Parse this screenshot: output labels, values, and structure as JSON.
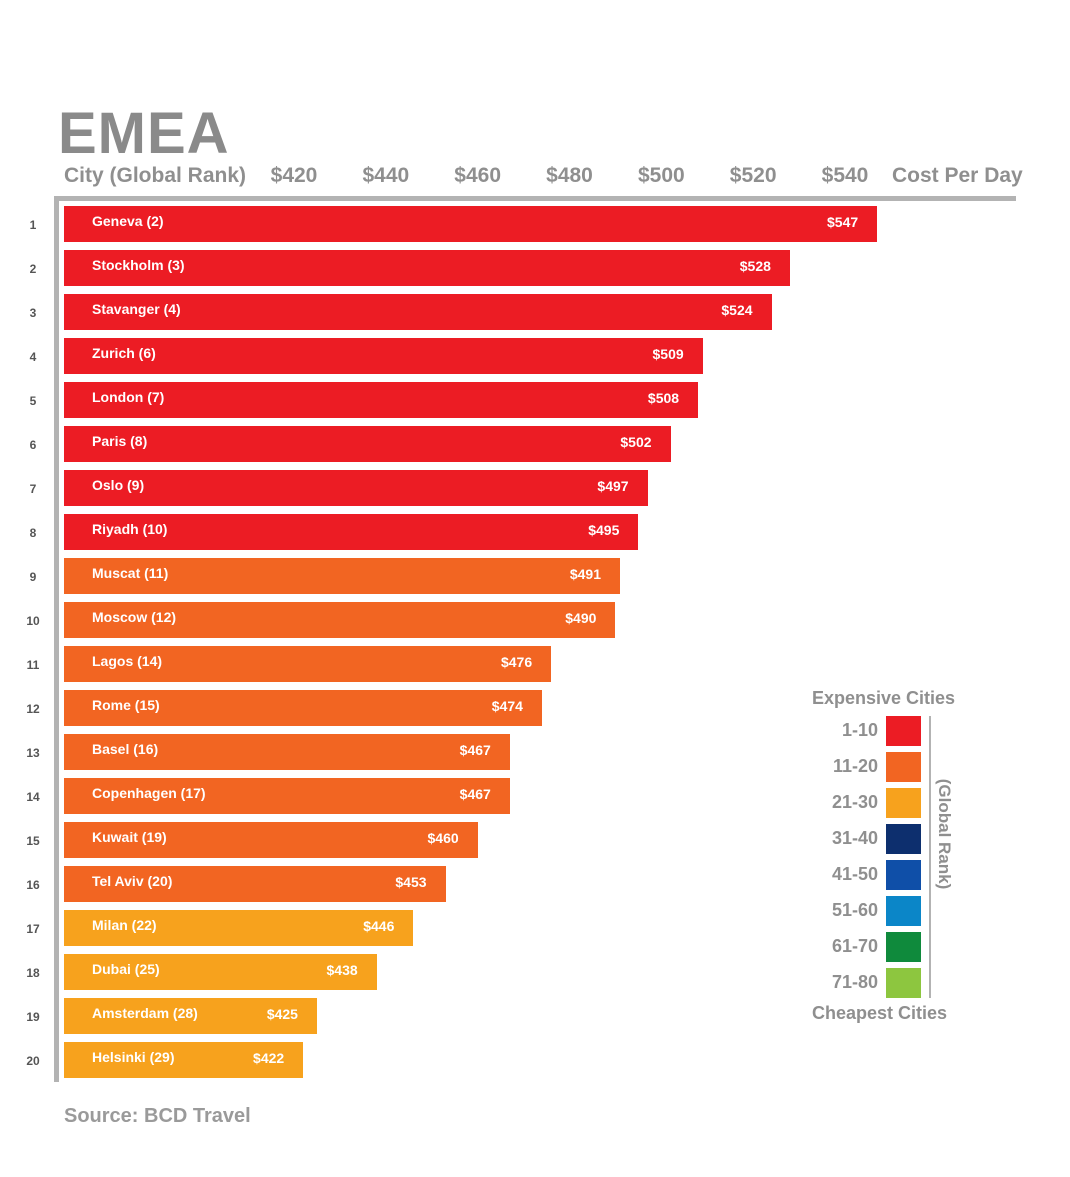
{
  "title": "EMEA",
  "header": {
    "left_label": "City (Global Rank)",
    "right_label": "Cost Per Day"
  },
  "source": "Source: BCD Travel",
  "chart_data": {
    "type": "bar",
    "orientation": "horizontal",
    "title": "EMEA",
    "xlabel": "Cost Per Day",
    "ylabel": "City (Global Rank)",
    "x_ticks": [
      "$420",
      "$440",
      "$460",
      "$480",
      "$500",
      "$520",
      "$540"
    ],
    "tick_values": [
      420,
      440,
      460,
      480,
      500,
      520,
      540
    ],
    "ranks": [
      "1",
      "2",
      "3",
      "4",
      "5",
      "6",
      "7",
      "8",
      "9",
      "10",
      "11",
      "12",
      "13",
      "14",
      "15",
      "16",
      "17",
      "18",
      "19",
      "20"
    ],
    "categories": [
      "Geneva (2)",
      "Stockholm (3)",
      "Stavanger (4)",
      "Zurich (6)",
      "London (7)",
      "Paris (8)",
      "Oslo (9)",
      "Riyadh (10)",
      "Muscat (11)",
      "Moscow (12)",
      "Lagos (14)",
      "Rome (15)",
      "Basel (16)",
      "Copenhagen (17)",
      "Kuwait (19)",
      "Tel Aviv (20)",
      "Milan (22)",
      "Dubai (25)",
      "Amsterdam (28)",
      "Helsinki (29)"
    ],
    "values": [
      547,
      528,
      524,
      509,
      508,
      502,
      497,
      495,
      491,
      490,
      476,
      474,
      467,
      467,
      460,
      453,
      446,
      438,
      425,
      422
    ],
    "value_labels": [
      "$547",
      "$528",
      "$524",
      "$509",
      "$508",
      "$502",
      "$497",
      "$495",
      "$491",
      "$490",
      "$476",
      "$474",
      "$467",
      "$467",
      "$460",
      "$453",
      "$446",
      "$438",
      "$425",
      "$422"
    ],
    "groups": [
      "1-10",
      "1-10",
      "1-10",
      "1-10",
      "1-10",
      "1-10",
      "1-10",
      "1-10",
      "11-20",
      "11-20",
      "11-20",
      "11-20",
      "11-20",
      "11-20",
      "11-20",
      "11-20",
      "21-30",
      "21-30",
      "21-30",
      "21-30"
    ]
  },
  "legend": {
    "top_label": "Expensive Cities",
    "bottom_label": "Cheapest Cities",
    "side_label": "(Global Rank)",
    "items": [
      {
        "range": "1-10",
        "color": "#ec1c24"
      },
      {
        "range": "11-20",
        "color": "#f26522"
      },
      {
        "range": "21-30",
        "color": "#f7a21d"
      },
      {
        "range": "31-40",
        "color": "#0d2f6e"
      },
      {
        "range": "41-50",
        "color": "#0f4fa8"
      },
      {
        "range": "51-60",
        "color": "#0b86c8"
      },
      {
        "range": "61-70",
        "color": "#0f8a3c"
      },
      {
        "range": "71-80",
        "color": "#8dc63f"
      }
    ]
  }
}
